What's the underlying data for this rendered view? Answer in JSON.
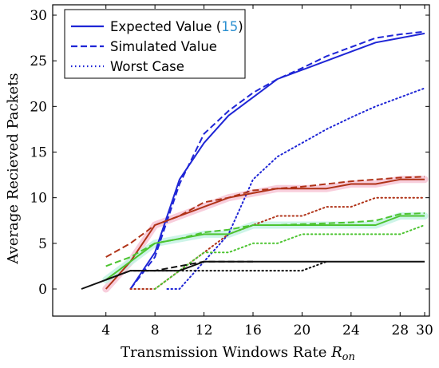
{
  "chart_data": {
    "type": "line",
    "xlabel": "Transmission Windows Rate",
    "xlabel_symbol": "R",
    "xlabel_subscript": "on",
    "ylabel": "Average Recieved Packets",
    "xlim": [
      0,
      30
    ],
    "ylim": [
      -2,
      31
    ],
    "xticks": [
      4,
      8,
      12,
      16,
      20,
      24,
      28,
      30
    ],
    "yticks": [
      0,
      5,
      10,
      15,
      20,
      25,
      30
    ],
    "grid": false,
    "legend": {
      "placement": "top-left",
      "entries": [
        {
          "label": "Expected Value (",
          "ref": "15",
          "suffix": ")",
          "color": "#1f26d6",
          "dash": "solid"
        },
        {
          "label": "Simulated Value",
          "color": "#1f26d6",
          "dash": "dashed"
        },
        {
          "label": "Worst Case",
          "color": "#1f26d6",
          "dash": "dotted"
        }
      ]
    },
    "series": [
      {
        "group": "blue",
        "style": "solid",
        "color": "#1f26d6",
        "band": null,
        "x": [
          6,
          8,
          10,
          12,
          14,
          16,
          18,
          20,
          22,
          24,
          26,
          28,
          30
        ],
        "y": [
          0,
          4,
          12,
          16,
          19,
          21,
          23,
          24,
          25,
          26,
          27,
          27.5,
          28
        ]
      },
      {
        "group": "blue",
        "style": "dashed",
        "color": "#1f26d6",
        "band": null,
        "x": [
          6,
          8,
          10,
          12,
          14,
          16,
          18,
          20,
          22,
          24,
          26,
          28,
          30
        ],
        "y": [
          0,
          3.5,
          11.5,
          17,
          19.5,
          21.5,
          23,
          24.2,
          25.5,
          26.5,
          27.5,
          27.9,
          28.2
        ]
      },
      {
        "group": "blue",
        "style": "dotted",
        "color": "#1f26d6",
        "band": null,
        "x": [
          9,
          10,
          12,
          14,
          16,
          18,
          20,
          22,
          24,
          26,
          28,
          30
        ],
        "y": [
          0,
          0,
          3,
          6,
          12,
          14.5,
          16,
          17.5,
          18.8,
          20,
          21,
          22
        ]
      },
      {
        "group": "red",
        "style": "solid",
        "color": "#b03318",
        "band": "#f7c6d6",
        "x": [
          4,
          6,
          8,
          10,
          12,
          14,
          16,
          18,
          20,
          22,
          24,
          26,
          28,
          30
        ],
        "y": [
          0,
          3,
          7,
          8,
          9,
          10,
          10.5,
          11,
          11,
          11,
          11.5,
          11.5,
          12,
          12
        ]
      },
      {
        "group": "red",
        "style": "dashed",
        "color": "#b03318",
        "band": null,
        "x": [
          4,
          6,
          8,
          10,
          12,
          14,
          16,
          18,
          20,
          22,
          24,
          26,
          28,
          30
        ],
        "y": [
          3.5,
          5,
          7,
          8,
          9.5,
          10,
          10.8,
          11,
          11.2,
          11.5,
          11.8,
          12,
          12.2,
          12.3
        ]
      },
      {
        "group": "red",
        "style": "dotted",
        "color": "#b03318",
        "band": null,
        "x": [
          6,
          8,
          10,
          12,
          14,
          16,
          18,
          20,
          22,
          24,
          26,
          28,
          30
        ],
        "y": [
          0,
          0,
          2,
          4,
          6,
          7,
          8,
          8,
          9,
          9,
          10,
          10,
          10
        ]
      },
      {
        "group": "green",
        "style": "solid",
        "color": "#4cc430",
        "band": "#c4f2e4",
        "x": [
          4,
          6,
          8,
          10,
          12,
          14,
          16,
          18,
          20,
          22,
          24,
          26,
          28,
          30
        ],
        "y": [
          1,
          3,
          5,
          5.5,
          6,
          6,
          7,
          7,
          7,
          7,
          7,
          7,
          8,
          8
        ]
      },
      {
        "group": "green",
        "style": "dashed",
        "color": "#4cc430",
        "band": null,
        "x": [
          4,
          6,
          8,
          10,
          12,
          14,
          16,
          18,
          20,
          22,
          24,
          26,
          28,
          30
        ],
        "y": [
          2.5,
          3.5,
          5,
          5.5,
          6.2,
          6.5,
          7,
          7,
          7.1,
          7.2,
          7.3,
          7.5,
          8.2,
          8.3
        ]
      },
      {
        "group": "green",
        "style": "dotted",
        "color": "#4cc430",
        "band": null,
        "x": [
          8,
          10,
          12,
          14,
          16,
          18,
          20,
          22,
          24,
          26,
          28,
          30
        ],
        "y": [
          0,
          2,
          4,
          4,
          5,
          5,
          6,
          6,
          6,
          6,
          6,
          7
        ]
      },
      {
        "group": "black",
        "style": "solid",
        "color": "#111111",
        "band": null,
        "x": [
          2,
          4,
          6,
          8,
          10,
          12,
          14,
          16,
          18,
          20,
          22,
          24,
          26,
          28,
          30
        ],
        "y": [
          0,
          1,
          2,
          2,
          2,
          3,
          3,
          3,
          3,
          3,
          3,
          3,
          3,
          3,
          3
        ]
      },
      {
        "group": "black",
        "style": "dashed",
        "color": "#111111",
        "band": null,
        "x": [
          4,
          6,
          8,
          10,
          12,
          14,
          16
        ],
        "y": [
          1,
          2,
          2,
          2.5,
          3,
          3,
          3
        ]
      },
      {
        "group": "black",
        "style": "dotted",
        "color": "#111111",
        "band": null,
        "x": [
          6,
          8,
          10,
          12,
          14,
          16,
          18,
          20,
          22
        ],
        "y": [
          2,
          2,
          2,
          2,
          2,
          2,
          2,
          2,
          3
        ]
      }
    ]
  }
}
